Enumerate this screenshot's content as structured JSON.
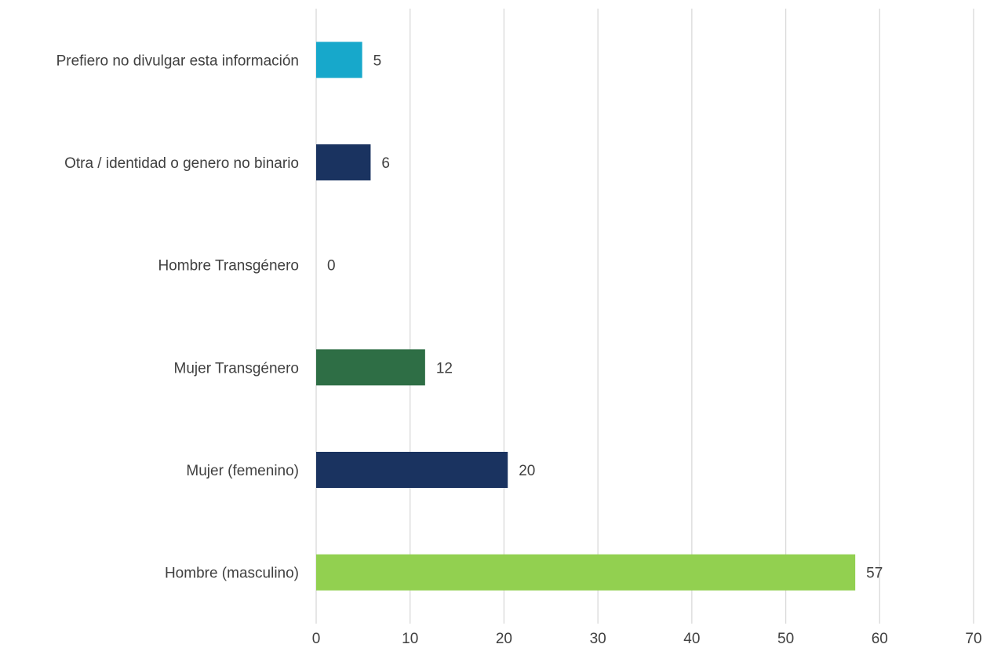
{
  "chart_data": {
    "type": "hbar",
    "categories": [
      "Prefiero no divulgar esta información",
      "Otra / identidad o genero no binario",
      "Hombre Transgénero",
      "Mujer Transgénero",
      "Mujer (femenino)",
      "Hombre (masculino)"
    ],
    "values": [
      4.9,
      5.8,
      0,
      11.6,
      20.4,
      57.4
    ],
    "value_labels": [
      "5",
      "6",
      "0",
      "12",
      "20",
      "57"
    ],
    "colors": [
      "#17a8cb",
      "#1a3360",
      "#1a3360",
      "#2e6e45",
      "#1a3360",
      "#92d050"
    ],
    "xlim": [
      0,
      70
    ],
    "xticks": [
      0,
      10,
      20,
      30,
      40,
      50,
      60,
      70
    ],
    "grid": true
  }
}
